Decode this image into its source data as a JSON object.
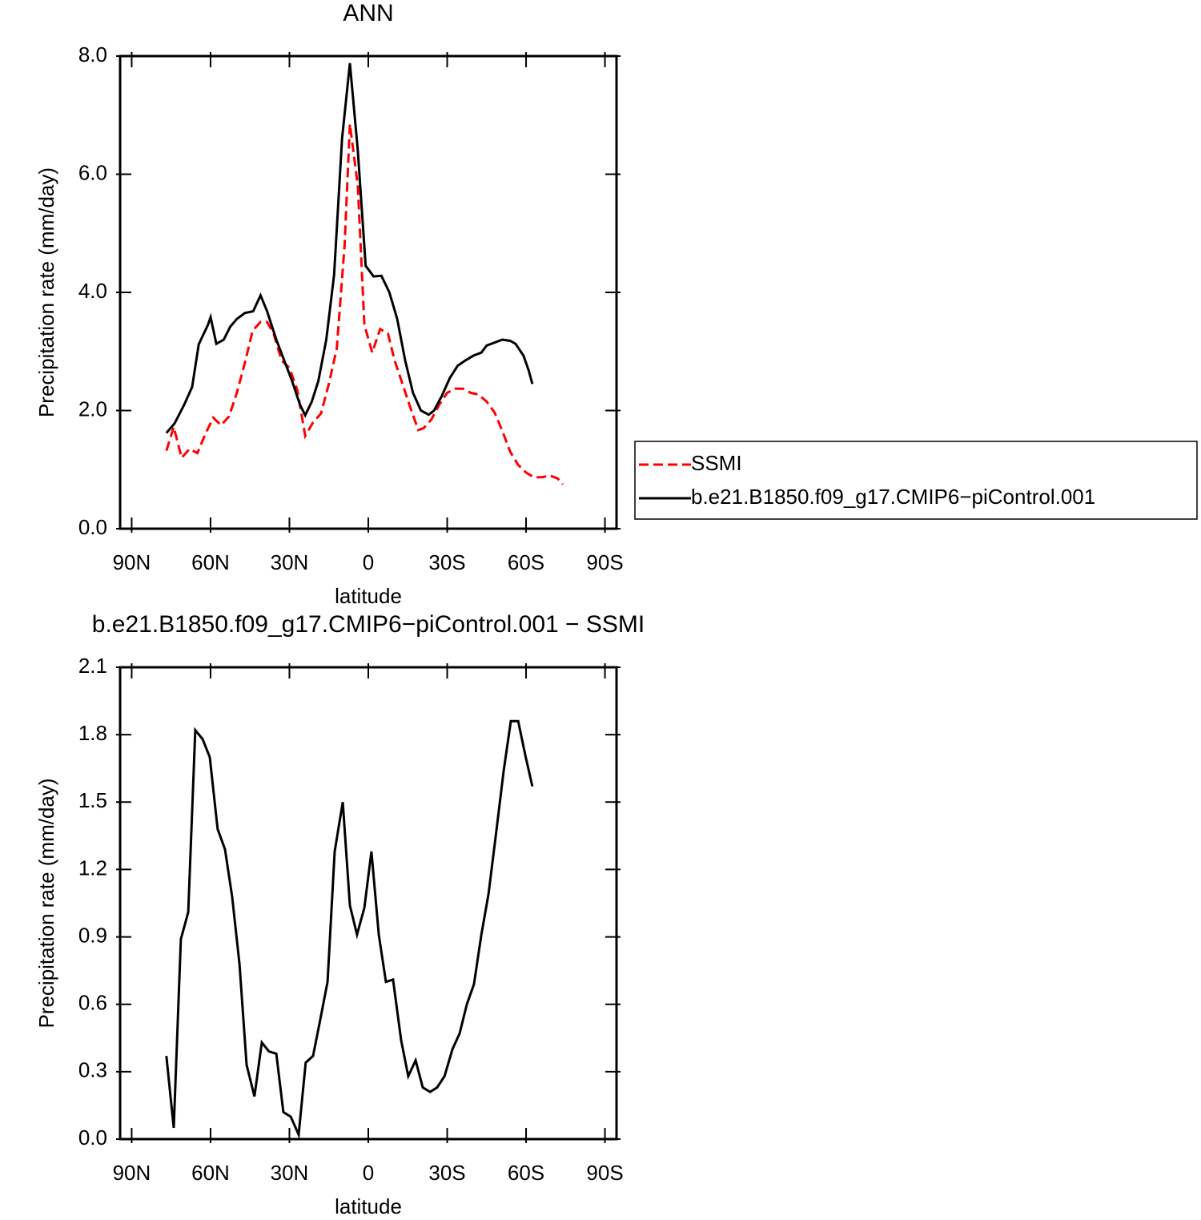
{
  "chart_data": [
    {
      "type": "line",
      "title": "ANN",
      "xlabel": "latitude",
      "ylabel": "Precipitation rate (mm/day)",
      "xlim": [
        94.4,
        -94.4
      ],
      "xticks": [
        {
          "value": 90,
          "label": "90N"
        },
        {
          "value": 60,
          "label": "60N"
        },
        {
          "value": 30,
          "label": "30N"
        },
        0,
        {
          "value": -30,
          "label": "30S"
        },
        {
          "value": -60,
          "label": "60S"
        },
        {
          "value": -90,
          "label": "90S"
        }
      ],
      "ylim": [
        0,
        8
      ],
      "yticks": [
        {
          "value": 0,
          "label": "0.0"
        },
        {
          "value": 2,
          "label": "2.0"
        },
        {
          "value": 4,
          "label": "4.0"
        },
        {
          "value": 6,
          "label": "6.0"
        },
        {
          "value": 8,
          "label": "8.0"
        }
      ],
      "legend": "right",
      "series": [
        {
          "name": "SSMI",
          "color": "#ff0000",
          "dashed": true,
          "x": [
            76.8,
            74,
            71,
            68,
            65,
            62,
            59,
            56,
            53,
            50,
            47,
            44,
            41,
            38.5,
            36,
            33,
            30,
            27,
            24,
            21,
            18,
            15,
            12,
            9,
            7,
            4,
            1.5,
            -1.5,
            -4.5,
            -7.5,
            -10,
            -13,
            -16,
            -19,
            -21,
            -24,
            -27,
            -30,
            -33,
            -36,
            -39,
            -42,
            -45,
            -48,
            -51,
            -54,
            -57,
            -60,
            -63,
            -66,
            -69,
            -72,
            -74
          ],
          "values": [
            1.32,
            1.72,
            1.2,
            1.35,
            1.28,
            1.6,
            1.88,
            1.75,
            1.9,
            2.3,
            2.8,
            3.35,
            3.5,
            3.5,
            3.3,
            2.85,
            2.72,
            2.35,
            1.57,
            1.8,
            1.95,
            2.45,
            3.05,
            4.8,
            6.85,
            5.8,
            3.45,
            2.98,
            3.38,
            3.3,
            2.85,
            2.45,
            2.05,
            1.67,
            1.7,
            1.85,
            2.1,
            2.3,
            2.37,
            2.37,
            2.3,
            2.27,
            2.15,
            1.97,
            1.65,
            1.3,
            1.08,
            0.95,
            0.87,
            0.87,
            0.9,
            0.85,
            0.75
          ]
        },
        {
          "name": "b.e21.B1850.f09_g17.CMIP6−piControl.001",
          "color": "#000000",
          "dashed": false,
          "x": [
            76.8,
            73.7,
            70,
            67,
            64.5,
            61,
            60,
            57.8,
            55,
            52.5,
            50,
            47,
            43.8,
            41,
            38.5,
            35,
            32,
            29,
            26,
            24,
            21.5,
            19,
            16,
            13,
            10,
            7,
            4,
            1,
            -2,
            -5,
            -8,
            -11,
            -14,
            -17,
            -20,
            -23,
            -25,
            -28,
            -31,
            -34,
            -37,
            -40,
            -43,
            -45,
            -48,
            -51,
            -54,
            -56,
            -59,
            -61,
            -62.4
          ],
          "values": [
            1.62,
            1.78,
            2.1,
            2.4,
            3.12,
            3.45,
            3.58,
            3.13,
            3.2,
            3.42,
            3.55,
            3.65,
            3.68,
            3.95,
            3.68,
            3.2,
            2.85,
            2.5,
            2.1,
            1.92,
            2.15,
            2.5,
            3.2,
            4.3,
            6.6,
            7.88,
            6.4,
            4.45,
            4.27,
            4.28,
            4.0,
            3.55,
            2.85,
            2.3,
            2.0,
            1.93,
            2.0,
            2.25,
            2.55,
            2.76,
            2.85,
            2.93,
            2.98,
            3.1,
            3.15,
            3.2,
            3.18,
            3.13,
            2.93,
            2.68,
            2.45
          ]
        }
      ]
    },
    {
      "type": "line",
      "title": "b.e21.B1850.f09_g17.CMIP6−piControl.001  −  SSMI",
      "xlabel": "latitude",
      "ylabel": "Precipitation rate (mm/day)",
      "xlim": [
        94.4,
        -94.4
      ],
      "xticks": [
        {
          "value": 90,
          "label": "90N"
        },
        {
          "value": 60,
          "label": "60N"
        },
        {
          "value": 30,
          "label": "30N"
        },
        0,
        {
          "value": -30,
          "label": "30S"
        },
        {
          "value": -60,
          "label": "60S"
        },
        {
          "value": -90,
          "label": "90S"
        }
      ],
      "ylim": [
        0,
        2.1
      ],
      "yticks": [
        {
          "value": 0,
          "label": "0.0"
        },
        0.3,
        0.6,
        0.9,
        1.2,
        1.5,
        1.8,
        2.1
      ],
      "series": [
        {
          "color": "#000000",
          "dashed": false,
          "x": [
            76.8,
            74,
            71.3,
            68.5,
            65.8,
            63,
            60.3,
            57.3,
            54.5,
            51.8,
            49,
            46.3,
            43.3,
            40.5,
            37.8,
            35,
            32.3,
            29.5,
            26.5,
            23.8,
            21,
            18.3,
            15.5,
            12.8,
            9.7,
            7,
            4.3,
            1.5,
            -1.2,
            -4,
            -6.7,
            -9.4,
            -12.5,
            -15.2,
            -18,
            -20.7,
            -23.5,
            -26.2,
            -29,
            -32,
            -34.7,
            -37.5,
            -40.2,
            -43,
            -45.7,
            -48.7,
            -51.5,
            -54.2,
            -57,
            -59.7,
            -62.4
          ],
          "values": [
            0.37,
            0.05,
            0.89,
            1.01,
            1.82,
            1.78,
            1.7,
            1.38,
            1.29,
            1.08,
            0.78,
            0.33,
            0.19,
            0.43,
            0.39,
            0.38,
            0.12,
            0.1,
            0.02,
            0.34,
            0.37,
            0.53,
            0.7,
            1.28,
            1.5,
            1.04,
            0.91,
            1.03,
            1.28,
            0.91,
            0.7,
            0.71,
            0.44,
            0.28,
            0.35,
            0.23,
            0.21,
            0.23,
            0.28,
            0.4,
            0.47,
            0.6,
            0.69,
            0.91,
            1.09,
            1.37,
            1.64,
            1.86,
            1.86,
            1.71,
            1.57
          ]
        }
      ]
    }
  ]
}
